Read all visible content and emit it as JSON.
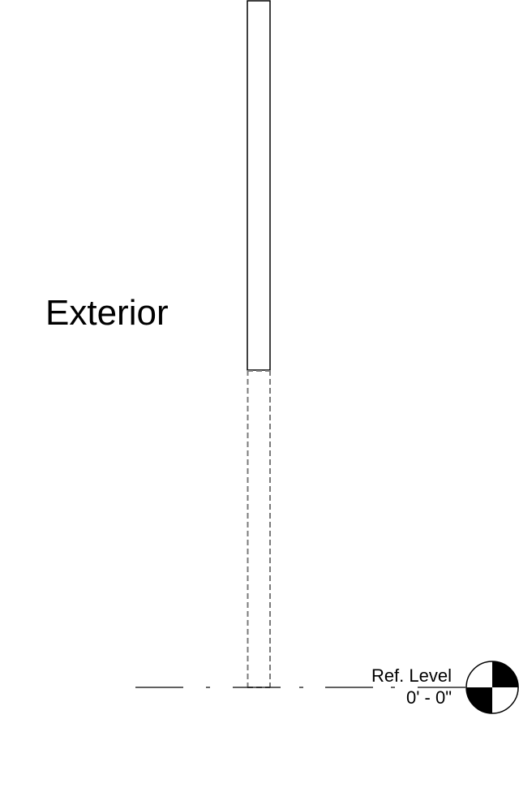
{
  "view": {
    "side_label": "Exterior"
  },
  "level": {
    "name": "Ref. Level",
    "elevation": "0' - 0\""
  },
  "icons": {
    "level_head": "level-head-target-icon"
  },
  "colors": {
    "line": "#000000",
    "hidden_line": "#7a7a7a",
    "background": "#ffffff"
  }
}
